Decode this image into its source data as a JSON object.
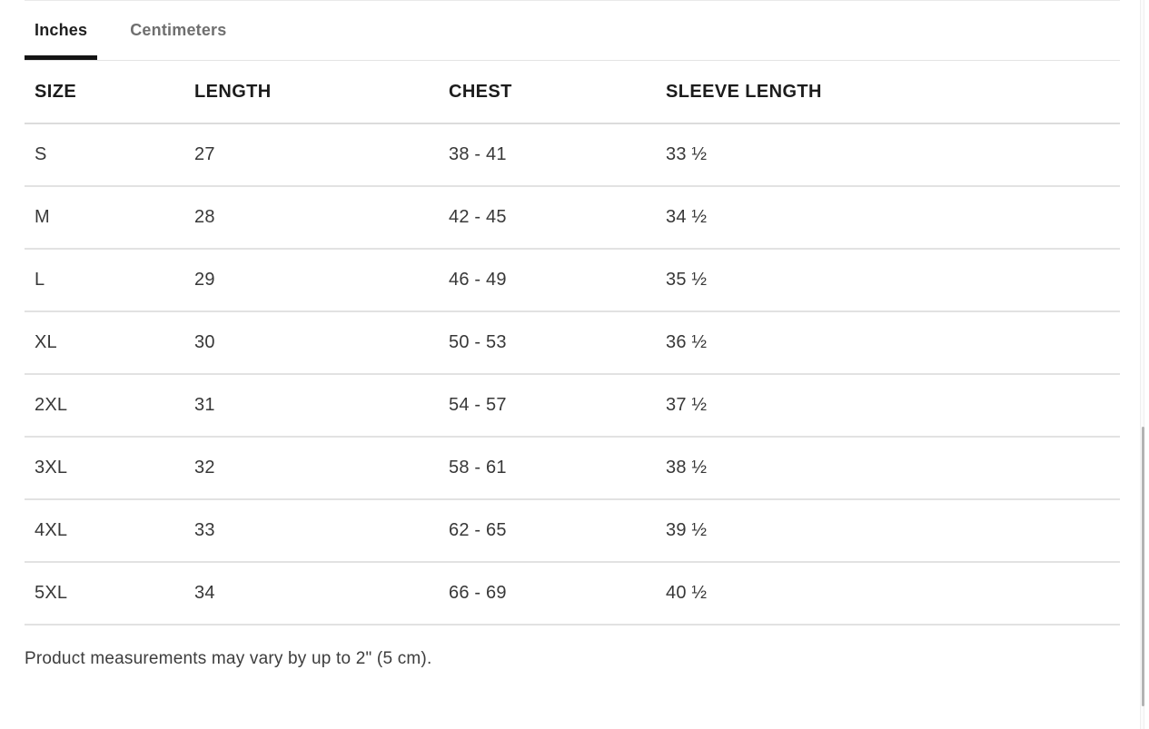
{
  "tabs": [
    {
      "label": "Inches",
      "active": true
    },
    {
      "label": "Centimeters",
      "active": false
    }
  ],
  "table": {
    "columns": [
      "SIZE",
      "LENGTH",
      "CHEST",
      "SLEEVE LENGTH"
    ],
    "rows": [
      [
        "S",
        "27",
        "38 - 41",
        "33 ½"
      ],
      [
        "M",
        "28",
        "42 - 45",
        "34 ½"
      ],
      [
        "L",
        "29",
        "46 - 49",
        "35 ½"
      ],
      [
        "XL",
        "30",
        "50 - 53",
        "36 ½"
      ],
      [
        "2XL",
        "31",
        "54 - 57",
        "37 ½"
      ],
      [
        "3XL",
        "32",
        "58 - 61",
        "38 ½"
      ],
      [
        "4XL",
        "33",
        "62 - 65",
        "39 ½"
      ],
      [
        "5XL",
        "34",
        "66 - 69",
        "40 ½"
      ]
    ]
  },
  "footnote": "Product measurements may vary by up to 2\" (5 cm).",
  "colors": {
    "active_tab_text": "#1f1f1f",
    "inactive_tab_text": "#6f6f6f",
    "active_tab_underline": "#141414",
    "header_text": "#1c1c1c",
    "body_text": "#383838",
    "divider": "#e2e2e2",
    "scrollbar_thumb": "#b3b3b3"
  }
}
